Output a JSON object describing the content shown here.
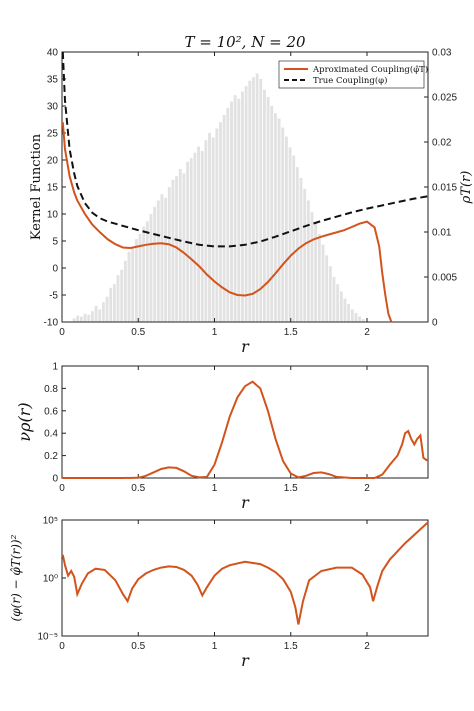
{
  "chart_data": [
    {
      "type": "line",
      "title": "T = 10², N = 20",
      "xlabel": "r",
      "ylabel": "Kernel Function",
      "y2label": "ρT(r)",
      "xlim": [
        0,
        2.4
      ],
      "ylim": [
        -10,
        40
      ],
      "y2lim": [
        0,
        0.03
      ],
      "xticks": [
        "0",
        "0.5",
        "1",
        "1.5",
        "2"
      ],
      "yticks": [
        "-10",
        "-5",
        "0",
        "5",
        "10",
        "15",
        "20",
        "25",
        "30",
        "35",
        "40"
      ],
      "y2ticks": [
        "0",
        "0.005",
        "0.01",
        "0.015",
        "0.02",
        "0.025",
        "0.03"
      ],
      "legend_position": "top-right",
      "grid": false,
      "colors": {
        "approx": "#D2541C",
        "true": "#111111",
        "hist": "#E2E2E2"
      },
      "series": [
        {
          "name": "Aproximated Coupling(φ̂T)",
          "x": [
            0.005,
            0.02,
            0.05,
            0.08,
            0.1,
            0.15,
            0.2,
            0.25,
            0.3,
            0.35,
            0.4,
            0.45,
            0.5,
            0.55,
            0.6,
            0.65,
            0.7,
            0.75,
            0.8,
            0.85,
            0.9,
            0.95,
            1.0,
            1.05,
            1.1,
            1.15,
            1.2,
            1.25,
            1.3,
            1.35,
            1.4,
            1.45,
            1.5,
            1.55,
            1.6,
            1.65,
            1.7,
            1.75,
            1.8,
            1.85,
            1.9,
            1.95,
            2.0,
            2.05,
            2.08,
            2.1,
            2.12,
            2.14,
            2.16
          ],
          "values": [
            27,
            22,
            17,
            14,
            12.5,
            10,
            8,
            6.6,
            5.3,
            4.4,
            3.8,
            3.7,
            4.0,
            4.3,
            4.5,
            4.6,
            4.4,
            3.8,
            2.8,
            1.6,
            0.3,
            -1.2,
            -2.5,
            -3.6,
            -4.5,
            -5,
            -5.1,
            -4.8,
            -3.9,
            -2.6,
            -1.0,
            0.7,
            2.3,
            3.6,
            4.6,
            5.3,
            5.8,
            6.2,
            6.6,
            7.0,
            7.6,
            8.2,
            8.6,
            7.5,
            4,
            -1,
            -5,
            -8.5,
            -11
          ]
        },
        {
          "name": "True Coupling(φ)",
          "x": [
            0.005,
            0.02,
            0.05,
            0.08,
            0.1,
            0.15,
            0.2,
            0.25,
            0.3,
            0.35,
            0.4,
            0.5,
            0.6,
            0.7,
            0.8,
            0.9,
            1.0,
            1.1,
            1.2,
            1.3,
            1.4,
            1.5,
            1.6,
            1.7,
            1.8,
            1.9,
            2.0,
            2.1,
            2.2,
            2.3,
            2.4
          ],
          "values": [
            40,
            31,
            22,
            17.5,
            15.2,
            12,
            10.2,
            9.2,
            8.6,
            8.2,
            7.8,
            7.0,
            6.3,
            5.6,
            4.9,
            4.3,
            4.0,
            4.0,
            4.3,
            4.9,
            5.8,
            6.8,
            7.8,
            8.7,
            9.5,
            10.3,
            11.0,
            11.6,
            12.2,
            12.8,
            13.3
          ]
        }
      ],
      "histogram": {
        "name": "ρT(r)",
        "bin_width": 0.024,
        "x_start": 0.07,
        "values": [
          0.0004,
          0.0007,
          0.0006,
          0.0009,
          0.0008,
          0.0012,
          0.0018,
          0.0014,
          0.0022,
          0.0028,
          0.0038,
          0.0042,
          0.0052,
          0.0058,
          0.0068,
          0.0078,
          0.0082,
          0.0092,
          0.0098,
          0.0106,
          0.0112,
          0.012,
          0.0128,
          0.0135,
          0.0142,
          0.0138,
          0.015,
          0.0158,
          0.0162,
          0.017,
          0.0165,
          0.0178,
          0.0182,
          0.0188,
          0.0195,
          0.019,
          0.0202,
          0.021,
          0.0205,
          0.0215,
          0.0222,
          0.023,
          0.0238,
          0.0245,
          0.0252,
          0.0248,
          0.0256,
          0.0262,
          0.0268,
          0.0272,
          0.0276,
          0.027,
          0.0258,
          0.025,
          0.024,
          0.0232,
          0.0226,
          0.0216,
          0.0206,
          0.0194,
          0.0185,
          0.0172,
          0.016,
          0.0148,
          0.0135,
          0.0122,
          0.011,
          0.0098,
          0.0086,
          0.0074,
          0.0062,
          0.005,
          0.0042,
          0.0034,
          0.0026,
          0.002,
          0.0014,
          0.001,
          0.0006,
          0.0003
        ]
      }
    },
    {
      "type": "line",
      "xlabel": "r",
      "ylabel": "νρ(r)",
      "xlim": [
        0,
        2.4
      ],
      "ylim": [
        0,
        1
      ],
      "xticks": [
        "0",
        "0.5",
        "1",
        "1.5",
        "2"
      ],
      "yticks": [
        "0",
        "0.2",
        "0.4",
        "0.6",
        "0.8",
        "1"
      ],
      "grid": false,
      "colors": {
        "line": "#D2541C"
      },
      "series": [
        {
          "x": [
            0,
            0.1,
            0.2,
            0.3,
            0.4,
            0.5,
            0.55,
            0.6,
            0.65,
            0.7,
            0.75,
            0.8,
            0.85,
            0.9,
            0.95,
            1.0,
            1.05,
            1.1,
            1.15,
            1.2,
            1.25,
            1.3,
            1.35,
            1.4,
            1.45,
            1.5,
            1.55,
            1.6,
            1.65,
            1.7,
            1.75,
            1.8,
            1.9,
            2.0,
            2.05,
            2.1,
            2.15,
            2.2,
            2.23,
            2.25,
            2.27,
            2.29,
            2.31,
            2.33,
            2.35,
            2.37,
            2.39,
            2.4
          ],
          "values": [
            0,
            0,
            0,
            0,
            0,
            0.002,
            0.02,
            0.05,
            0.08,
            0.095,
            0.09,
            0.06,
            0.02,
            0.005,
            0.01,
            0.12,
            0.32,
            0.55,
            0.72,
            0.82,
            0.86,
            0.8,
            0.6,
            0.35,
            0.15,
            0.04,
            0.005,
            0.02,
            0.045,
            0.05,
            0.035,
            0.01,
            0.0,
            0.0,
            0.0,
            0.03,
            0.12,
            0.2,
            0.3,
            0.4,
            0.42,
            0.35,
            0.3,
            0.35,
            0.38,
            0.18,
            0.16,
            0.16
          ]
        }
      ]
    },
    {
      "type": "line",
      "xlabel": "r",
      "ylabel": "(φ(r) − φ̂T(r))²",
      "xlim": [
        0,
        2.4
      ],
      "ylim_log10": [
        -5,
        5
      ],
      "y_scale": "log",
      "xticks": [
        "0",
        "0.5",
        "1",
        "1.5",
        "2"
      ],
      "yticks": [
        "10⁵",
        "10⁰",
        "10⁻⁵"
      ],
      "grid": false,
      "colors": {
        "line": "#D2541C"
      },
      "series": [
        {
          "x": [
            0.005,
            0.02,
            0.04,
            0.06,
            0.08,
            0.1,
            0.13,
            0.17,
            0.22,
            0.28,
            0.35,
            0.4,
            0.43,
            0.46,
            0.5,
            0.55,
            0.6,
            0.65,
            0.7,
            0.75,
            0.8,
            0.85,
            0.89,
            0.92,
            0.95,
            1.0,
            1.05,
            1.1,
            1.2,
            1.3,
            1.35,
            1.4,
            1.45,
            1.5,
            1.53,
            1.55,
            1.58,
            1.62,
            1.7,
            1.8,
            1.9,
            1.97,
            2.02,
            2.04,
            2.07,
            2.1,
            2.15,
            2.2,
            2.25,
            2.3,
            2.35,
            2.4
          ],
          "log10_values": [
            2.0,
            1.1,
            0.2,
            0.6,
            0.1,
            -1.4,
            -0.5,
            0.4,
            0.8,
            0.7,
            -0.2,
            -1.4,
            -2.0,
            -0.9,
            -0.1,
            0.4,
            0.7,
            0.9,
            1.0,
            0.95,
            0.7,
            0.2,
            -0.6,
            -1.5,
            -0.8,
            0.2,
            0.8,
            1.1,
            1.4,
            1.2,
            0.9,
            0.5,
            -0.1,
            -1.2,
            -2.5,
            -4.0,
            -2.0,
            -0.2,
            0.6,
            0.9,
            0.9,
            0.3,
            -0.8,
            -2.0,
            -0.6,
            0.6,
            1.6,
            2.3,
            3.0,
            3.6,
            4.2,
            4.8
          ]
        }
      ]
    }
  ]
}
